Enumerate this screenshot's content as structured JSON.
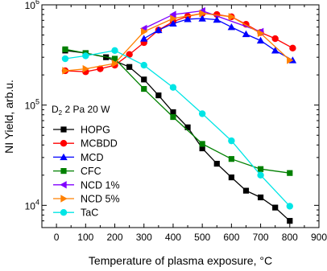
{
  "chart_data": {
    "type": "line",
    "ylabel": "NI Yield, arb.u.",
    "xlabel": "Temperature of plasma exposure, °C",
    "yscale": "log",
    "xlim": [
      -50,
      900
    ],
    "ylim": [
      6000,
      1000000
    ],
    "x_ticks": [
      0,
      100,
      200,
      300,
      400,
      500,
      600,
      700,
      800,
      900
    ],
    "y_ticks": [
      {
        "value": 10000,
        "base": "10",
        "exp": "4"
      },
      {
        "value": 100000,
        "base": "10",
        "exp": "5"
      },
      {
        "value": 1000000,
        "base": "10",
        "exp": "6"
      }
    ],
    "annotation": {
      "prefix": "D",
      "sub": "2",
      "rest": " 2 Pa 20 W"
    },
    "legend_position": "left-center",
    "grid": false,
    "series": [
      {
        "name": "HOPG",
        "color": "#000000",
        "marker": "square",
        "x": [
          30,
          100,
          170,
          250,
          300,
          350,
          400,
          450,
          500,
          550,
          600,
          650,
          700,
          750,
          800
        ],
        "y": [
          350000,
          330000,
          300000,
          240000,
          180000,
          125000,
          85000,
          60000,
          37000,
          26000,
          19000,
          14000,
          12000,
          9500,
          7000
        ]
      },
      {
        "name": "MCBDD",
        "color": "#ff0000",
        "marker": "circle",
        "x": [
          30,
          100,
          150,
          200,
          250,
          300,
          350,
          400,
          450,
          500,
          550,
          600,
          650,
          700,
          750,
          810
        ],
        "y": [
          220000,
          215000,
          230000,
          250000,
          320000,
          420000,
          560000,
          680000,
          770000,
          820000,
          800000,
          760000,
          640000,
          530000,
          460000,
          370000
        ]
      },
      {
        "name": "MCD",
        "color": "#0000ff",
        "marker": "triangle-up",
        "x": [
          300,
          350,
          400,
          450,
          500,
          550,
          600,
          650,
          700,
          750,
          810
        ],
        "y": [
          460000,
          560000,
          650000,
          720000,
          730000,
          710000,
          600000,
          510000,
          440000,
          350000,
          280000
        ]
      },
      {
        "name": "CFC",
        "color": "#008000",
        "marker": "square",
        "x": [
          30,
          100,
          200,
          300,
          400,
          500,
          600,
          700,
          800
        ],
        "y": [
          360000,
          330000,
          290000,
          145000,
          76000,
          41000,
          29000,
          23000,
          21000
        ]
      },
      {
        "name": "NCD 1%",
        "color": "#8000ff",
        "marker": "triangle-left",
        "x": [
          300,
          400,
          500,
          700
        ],
        "y": [
          580000,
          800000,
          870000,
          540000
        ]
      },
      {
        "name": "NCD 5%",
        "color": "#ff8000",
        "marker": "triangle-right",
        "x": [
          30,
          100,
          200,
          300,
          400,
          500,
          600,
          700,
          800
        ],
        "y": [
          220000,
          230000,
          260000,
          540000,
          730000,
          820000,
          760000,
          520000,
          280000
        ]
      },
      {
        "name": "TaC",
        "color": "#00e5e5",
        "marker": "circle",
        "x": [
          30,
          100,
          200,
          300,
          400,
          500,
          600,
          700,
          800
        ],
        "y": [
          290000,
          310000,
          350000,
          250000,
          150000,
          82000,
          44000,
          20000,
          9800
        ]
      }
    ]
  }
}
